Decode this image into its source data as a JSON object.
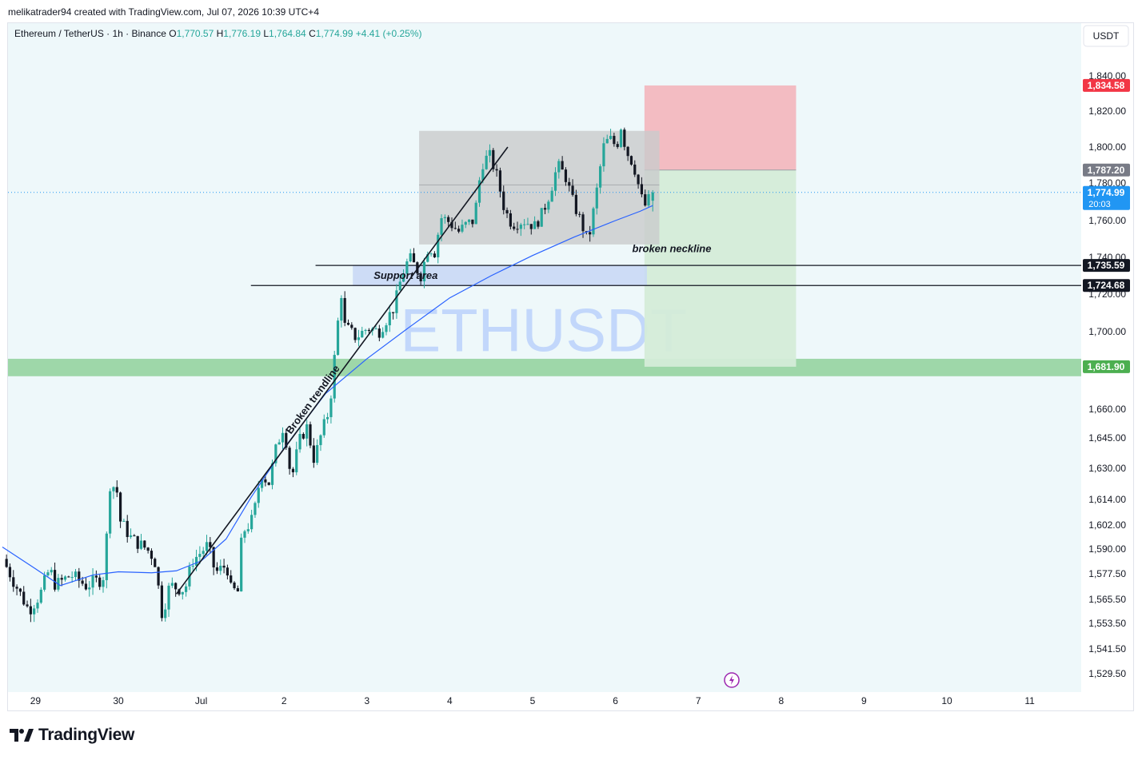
{
  "header": {
    "created_line": "melikatrader94 created with TradingView.com, Jul 07, 2026 10:39 UTC+4",
    "symbol_line": "Ethereum / TetherUS · 1h · Binance",
    "open_label": "O",
    "open": "1,770.57",
    "high_label": "H",
    "high": "1,776.19",
    "low_label": "L",
    "low": "1,764.84",
    "close_label": "C",
    "close": "1,774.99",
    "change": "+4.41 (+0.25%)"
  },
  "currency_button": "USDT",
  "watermark": "ETHUSDT",
  "brand": "TradingView",
  "colors": {
    "up": "#26a69a",
    "down": "#131722",
    "ma": "#2962ff",
    "stop_zone": "#f2b8bf",
    "target_zone": "#d4ecd8",
    "support_band": "#8fd19a",
    "support_area": "#c7d7f5",
    "range_box": "#c9cbcc",
    "current_price": "#2196f3",
    "stop_label": "#f23645",
    "entry_label": "#787b86"
  },
  "chart_data": {
    "type": "candlestick",
    "symbol": "ETHUSDT",
    "timeframe": "1h",
    "y_ticks": [
      "1,840.00",
      "1,820.00",
      "1,800.00",
      "1,780.00",
      "1,760.00",
      "1,740.00",
      "1,720.00",
      "1,700.00",
      "1,660.00",
      "1,645.00",
      "1,630.00",
      "1,614.00",
      "1,602.00",
      "1,590.00",
      "1,577.50",
      "1,565.50",
      "1,553.50",
      "1,541.50",
      "1,529.50"
    ],
    "x_ticks": [
      "29",
      "30",
      "Jul",
      "2",
      "3",
      "4",
      "5",
      "6",
      "7",
      "8",
      "9",
      "10",
      "11"
    ],
    "ohlc_last": {
      "open": 1770.57,
      "high": 1776.19,
      "low": 1764.84,
      "close": 1774.99
    },
    "price_labels": [
      {
        "value": "1,834.58",
        "role": "stop"
      },
      {
        "value": "1,787.20",
        "role": "entry"
      },
      {
        "value": "1,774.99",
        "role": "current",
        "countdown": "20:03"
      },
      {
        "value": "1,735.59",
        "role": "level"
      },
      {
        "value": "1,724.68",
        "role": "level"
      },
      {
        "value": "1,681.90",
        "role": "target"
      }
    ],
    "annotations": [
      {
        "text": "broken neckline",
        "price": 1745
      },
      {
        "text": "Support area",
        "price": 1730
      },
      {
        "text": "Broken trendline"
      }
    ],
    "zones": {
      "range_box": {
        "x_start": 4.63,
        "x_end": 7.53,
        "low": 1747,
        "high": 1809
      },
      "support_area": {
        "x_start": 3.83,
        "x_end": 7.38,
        "low": 1724.68,
        "high": 1735.59
      },
      "support_band": {
        "low": 1677,
        "high": 1686
      },
      "position": {
        "x_start": 7.35,
        "x_end": 9.18,
        "stop": 1834.58,
        "entry": 1787.2,
        "target": 1681.9
      }
    },
    "trendline": {
      "x1": 1.7,
      "p1": 1568,
      "x2": 5.7,
      "p2": 1800
    },
    "levels": [
      {
        "price": 1735.59,
        "x_start": 3.38
      },
      {
        "price": 1724.68,
        "x_start": 2.6
      }
    ],
    "moving_average": [
      [
        -0.4,
        1591
      ],
      [
        0,
        1580
      ],
      [
        0.3,
        1572
      ],
      [
        0.7,
        1577
      ],
      [
        1.0,
        1578.5
      ],
      [
        1.4,
        1578
      ],
      [
        1.7,
        1579
      ],
      [
        2.0,
        1584
      ],
      [
        2.3,
        1595
      ],
      [
        2.6,
        1615
      ],
      [
        3.0,
        1640
      ],
      [
        3.5,
        1668
      ],
      [
        4.0,
        1686
      ],
      [
        4.5,
        1702
      ],
      [
        5.0,
        1718
      ],
      [
        5.5,
        1730
      ],
      [
        6.0,
        1741
      ],
      [
        6.5,
        1751
      ],
      [
        7.0,
        1760
      ],
      [
        7.3,
        1765
      ],
      [
        7.45,
        1768
      ]
    ],
    "candles": []
  }
}
